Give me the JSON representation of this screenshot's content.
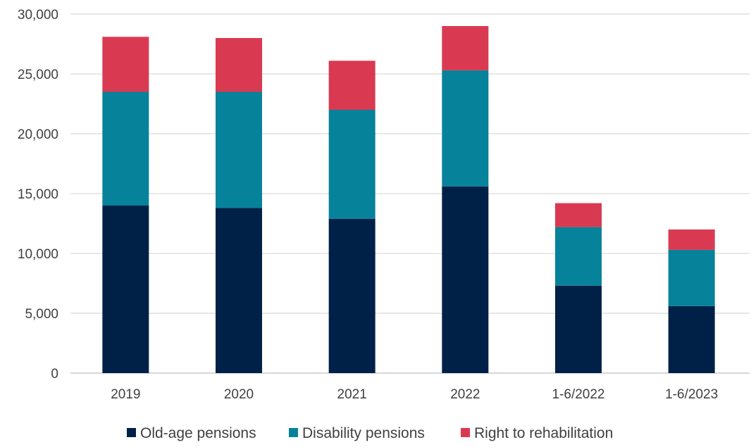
{
  "chart_data": {
    "type": "bar",
    "stacked": true,
    "categories": [
      "2019",
      "2020",
      "2021",
      "2022",
      "1-6/2022",
      "1-6/2023"
    ],
    "series": [
      {
        "name": "Old-age pensions",
        "color": "#002147",
        "values": [
          14000,
          13800,
          12900,
          15600,
          7300,
          5600
        ]
      },
      {
        "name": "Disability pensions",
        "color": "#07829b",
        "values": [
          9500,
          9700,
          9100,
          9700,
          4900,
          4700
        ]
      },
      {
        "name": "Right to rehabilitation",
        "color": "#d93a51",
        "values": [
          4600,
          4500,
          4100,
          3700,
          2000,
          1700
        ]
      }
    ],
    "yticks": [
      "0",
      "5,000",
      "10,000",
      "15,000",
      "20,000",
      "25,000",
      "30,000"
    ],
    "ylim": [
      0,
      30000
    ],
    "grid": true,
    "legend_position": "bottom"
  }
}
